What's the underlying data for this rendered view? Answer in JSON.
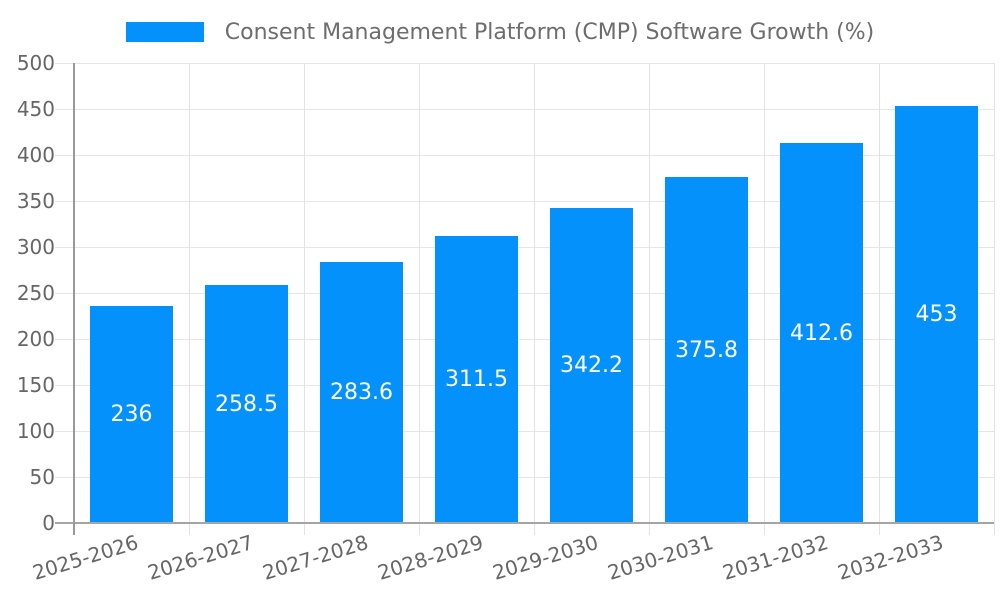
{
  "legend": {
    "label": "Consent Management Platform (CMP) Software Growth (%)"
  },
  "colors": {
    "bar": "#0591fb",
    "bar_value_label": "#ffffff",
    "axis_text": "#666666",
    "legend_text": "#6d6d6d",
    "gridline": "#e6e6e6",
    "axis_line": "#a0a0a0",
    "background": "#ffffff"
  },
  "chart_data": {
    "type": "bar",
    "title": "Consent Management Platform (CMP) Software Growth (%)",
    "categories": [
      "2025-2026",
      "2026-2027",
      "2027-2028",
      "2028-2029",
      "2029-2030",
      "2030-2031",
      "2031-2032",
      "2032-2033"
    ],
    "series": [
      {
        "name": "Consent Management Platform (CMP) Software Growth (%)",
        "values": [
          236,
          258.5,
          283.6,
          311.5,
          342.2,
          375.8,
          412.6,
          453
        ]
      }
    ],
    "value_labels_shown": true,
    "xlabel": "",
    "ylabel": "",
    "ylim": [
      0,
      500
    ],
    "ytick_step": 50,
    "yticks": [
      0,
      50,
      100,
      150,
      200,
      250,
      300,
      350,
      400,
      450,
      500
    ],
    "grid": true,
    "legend_position": "top",
    "xtick_rotation_deg": -17,
    "bar_color": "#0591fb"
  }
}
